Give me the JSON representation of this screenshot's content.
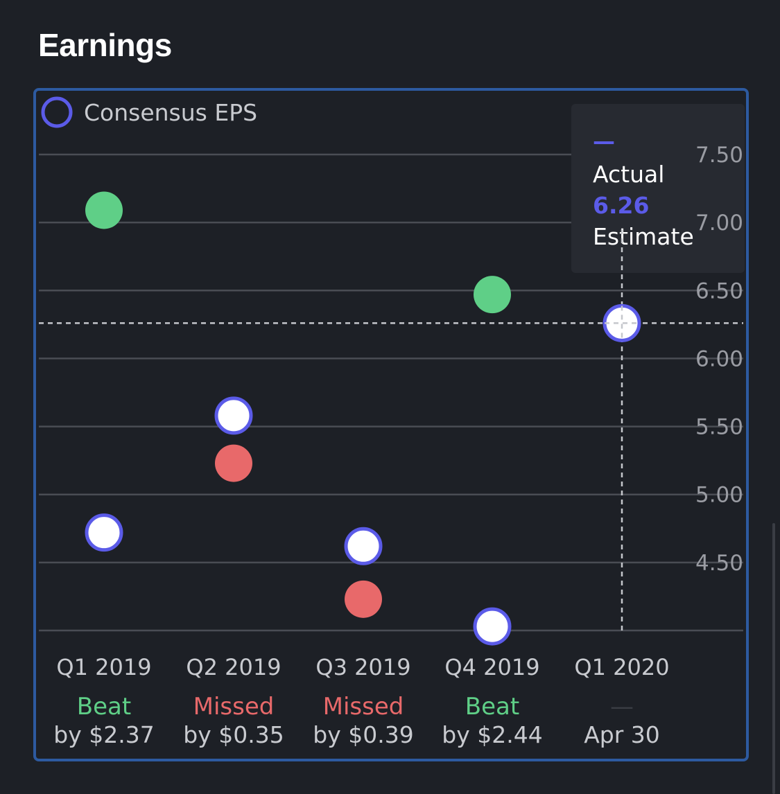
{
  "section_title": "Earnings",
  "colors": {
    "estimate_ring": "#5b5be8",
    "beat": "#5fcf87",
    "missed": "#e8696a",
    "grid": "#4a4d54",
    "axis_text": "#9a9ca3",
    "border": "#2d5aa0",
    "background": "#1d2026"
  },
  "chart_data": {
    "type": "scatter",
    "legend": [
      "Consensus EPS"
    ],
    "ylim": [
      4.0,
      7.5
    ],
    "y_ticks": [
      "7.50",
      "7.00",
      "6.50",
      "6.00",
      "5.50",
      "5.00",
      "4.50"
    ],
    "categories": [
      "Q1 2019",
      "Q2 2019",
      "Q3 2019",
      "Q4 2019",
      "Q1 2020"
    ],
    "estimate": [
      4.72,
      5.58,
      4.62,
      4.03,
      6.26
    ],
    "actual": [
      7.09,
      5.23,
      4.23,
      6.47,
      null
    ],
    "result": [
      "Beat",
      "Missed",
      "Missed",
      "Beat",
      "—"
    ],
    "detail": [
      "by $2.37",
      "by $0.35",
      "by $0.39",
      "by $2.44",
      "Apr 30"
    ],
    "tooltip": {
      "actual_label": "Actual",
      "value": "6.26",
      "estimate_label": "Estimate",
      "marker": "—"
    }
  }
}
